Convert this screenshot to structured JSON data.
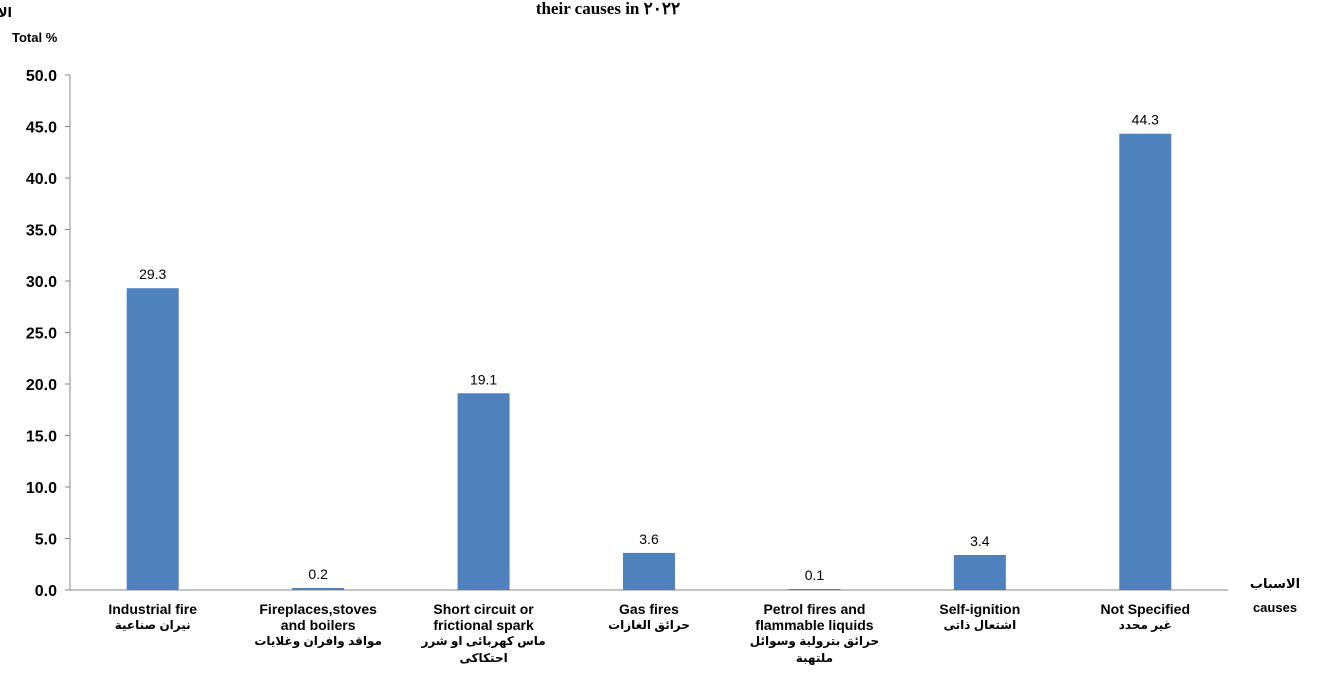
{
  "chart_data": {
    "type": "bar",
    "title": "their causes in ٢٠٢٢",
    "ylabel_ar": "الاجمالي ٪",
    "ylabel": "Total %",
    "xlabel_ar": "الاسباب",
    "xlabel": "causes",
    "ylim": [
      0,
      50
    ],
    "yticks": [
      "0.0",
      "5.0",
      "10.0",
      "15.0",
      "20.0",
      "25.0",
      "30.0",
      "35.0",
      "40.0",
      "45.0",
      "50.0"
    ],
    "bar_color": "#4f81bd",
    "grid": false,
    "categories": [
      {
        "en": [
          "Industrial fire"
        ],
        "ar": [
          "نيران صناعية"
        ]
      },
      {
        "en": [
          "Fireplaces,stoves",
          "and boilers"
        ],
        "ar": [
          "مواقد وافران وغلايات"
        ]
      },
      {
        "en": [
          "Short circuit or",
          "frictional spark"
        ],
        "ar": [
          "ماس كهربائى او شرر",
          "احتكاكى"
        ]
      },
      {
        "en": [
          "Gas fires"
        ],
        "ar": [
          "حرائق الغازات"
        ]
      },
      {
        "en": [
          "Petrol fires  and",
          "flammable liquids"
        ],
        "ar": [
          "حرائق بترولية وسوائل",
          "ملتهبة"
        ]
      },
      {
        "en": [
          "Self-ignition"
        ],
        "ar": [
          "اشتعال ذاتى"
        ]
      },
      {
        "en": [
          "Not Specified"
        ],
        "ar": [
          "غير محدد"
        ]
      }
    ],
    "values": [
      29.3,
      0.2,
      19.1,
      3.6,
      0.1,
      3.4,
      44.3
    ],
    "value_labels": [
      "29.3",
      "0.2",
      "19.1",
      "3.6",
      "0.1",
      "3.4",
      "44.3"
    ]
  }
}
